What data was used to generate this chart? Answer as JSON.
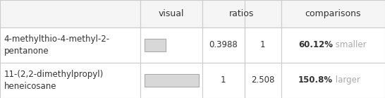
{
  "rows": [
    {
      "name": "4-methylthio-4-methyl-2-\npentanone",
      "ratio1": "0.3988",
      "ratio2": "1",
      "comparison_value": "60.12%",
      "comparison_text": " smaller",
      "bar_ratio": 0.3988
    },
    {
      "name": "11-(2,2-dimethylpropyl)\nheneicosane",
      "ratio1": "1",
      "ratio2": "2.508",
      "comparison_value": "150.8%",
      "comparison_text": " larger",
      "bar_ratio": 1.0
    }
  ],
  "bar_color": "#d8d8d8",
  "bar_border": "#aaaaaa",
  "col_header_color": "#f5f5f5",
  "row_bg_color": "#ffffff",
  "grid_color": "#cccccc",
  "text_color": "#333333",
  "comparison_bold_color": "#333333",
  "comparison_light_color": "#aaaaaa",
  "header_fontsize": 9,
  "cell_fontsize": 8.5,
  "fig_width": 5.46,
  "fig_height": 1.39
}
